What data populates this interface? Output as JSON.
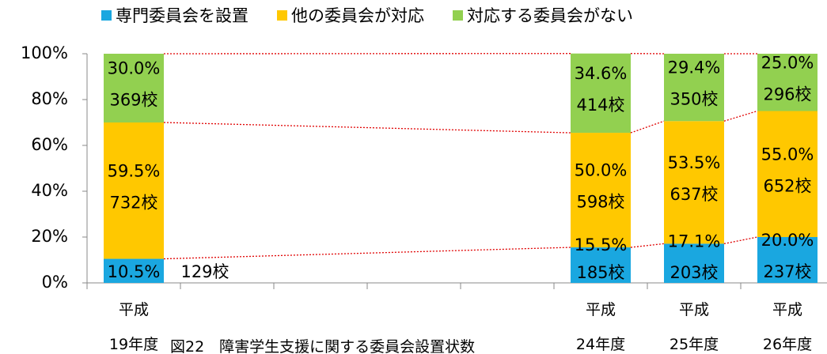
{
  "chart_data": {
    "type": "stacked_bar",
    "caption": "図22　障害学生支援に関する委員会設置状数",
    "categories": [
      "平成\n19年度",
      null,
      null,
      null,
      null,
      "平成\n24年度",
      "平成\n25年度",
      "平成\n26年度"
    ],
    "series": [
      {
        "name": "専門委員会を設置",
        "color": "#1aa7e0",
        "values": [
          10.5,
          null,
          null,
          null,
          null,
          15.5,
          17.1,
          20.0
        ],
        "value_labels": [
          "10.5%",
          null,
          null,
          null,
          null,
          "15.5%",
          "17.1%",
          "20.0%"
        ],
        "count_labels": [
          "129校",
          null,
          null,
          null,
          null,
          "185校",
          "203校",
          "237校"
        ]
      },
      {
        "name": "他の委員会が対応",
        "color": "#ffc800",
        "values": [
          59.5,
          null,
          null,
          null,
          null,
          50.0,
          53.5,
          55.0
        ],
        "value_labels": [
          "59.5%",
          null,
          null,
          null,
          null,
          "50.0%",
          "53.5%",
          "55.0%"
        ],
        "count_labels": [
          "732校",
          null,
          null,
          null,
          null,
          "598校",
          "637校",
          "652校"
        ]
      },
      {
        "name": "対応する委員会がない",
        "color": "#92d050",
        "values": [
          30.0,
          null,
          null,
          null,
          null,
          34.6,
          29.4,
          25.0
        ],
        "value_labels": [
          "30.0%",
          null,
          null,
          null,
          null,
          "34.6%",
          "29.4%",
          "25.0%"
        ],
        "count_labels": [
          "369校",
          null,
          null,
          null,
          null,
          "414校",
          "350校",
          "296校"
        ]
      }
    ],
    "ylim": [
      0,
      100
    ],
    "yticks": [
      {
        "value": 0,
        "label": "0%"
      },
      {
        "value": 20,
        "label": "20%"
      },
      {
        "value": 40,
        "label": "40%"
      },
      {
        "value": 60,
        "label": "60%"
      },
      {
        "value": 80,
        "label": "80%"
      },
      {
        "value": 100,
        "label": "100%"
      }
    ],
    "connector_color": "#e00000",
    "legend": "top"
  }
}
